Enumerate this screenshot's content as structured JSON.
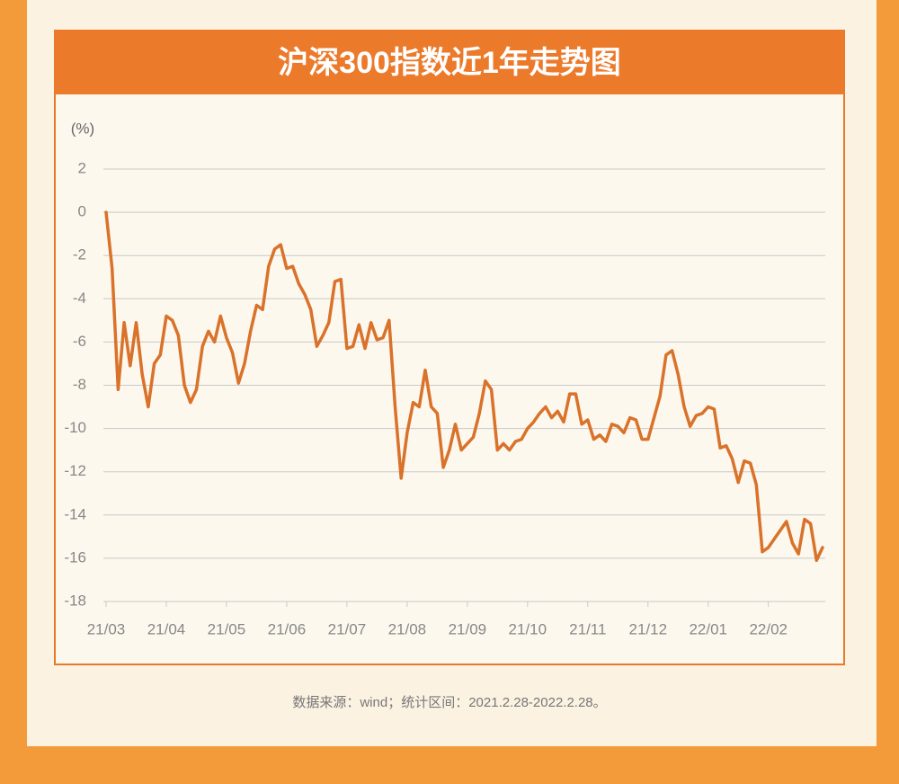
{
  "chart_data": {
    "type": "line",
    "title": "沪深300指数近1年走势图",
    "ylabel": "(%)",
    "source": "数据来源：wind；统计区间：2021.2.28-2022.2.28。",
    "color": "#d9722a",
    "grid": true,
    "ylim": [
      -18,
      2
    ],
    "yticks": [
      2,
      0,
      -2,
      -4,
      -6,
      -8,
      -10,
      -12,
      -14,
      -16,
      -18
    ],
    "categories": [
      "21/03",
      null,
      null,
      null,
      null,
      null,
      null,
      null,
      null,
      null,
      "21/04",
      null,
      null,
      null,
      null,
      null,
      null,
      null,
      null,
      null,
      "21/05",
      null,
      null,
      null,
      null,
      null,
      null,
      null,
      null,
      null,
      "21/06",
      null,
      null,
      null,
      null,
      null,
      null,
      null,
      null,
      null,
      "21/07",
      null,
      null,
      null,
      null,
      null,
      null,
      null,
      null,
      null,
      "21/08",
      null,
      null,
      null,
      null,
      null,
      null,
      null,
      null,
      null,
      "21/09",
      null,
      null,
      null,
      null,
      null,
      null,
      null,
      null,
      null,
      "21/10",
      null,
      null,
      null,
      null,
      null,
      null,
      null,
      null,
      null,
      "21/11",
      null,
      null,
      null,
      null,
      null,
      null,
      null,
      null,
      null,
      "21/12",
      null,
      null,
      null,
      null,
      null,
      null,
      null,
      null,
      null,
      "22/01",
      null,
      null,
      null,
      null,
      null,
      null,
      null,
      null,
      null,
      "22/02",
      null,
      null,
      null,
      null,
      null,
      null,
      null,
      null,
      null
    ],
    "values": [
      0,
      -2.6,
      -8.2,
      -5.1,
      -7.1,
      -5.1,
      -7.5,
      -9.0,
      -7.0,
      -6.6,
      -4.8,
      -5.0,
      -5.7,
      -8.0,
      -8.8,
      -8.2,
      -6.2,
      -5.5,
      -6.0,
      -4.8,
      -5.8,
      -6.5,
      -7.9,
      -7.0,
      -5.5,
      -4.3,
      -4.5,
      -2.5,
      -1.7,
      -1.5,
      -2.6,
      -2.5,
      -3.3,
      -3.8,
      -4.5,
      -6.2,
      -5.7,
      -5.1,
      -3.2,
      -3.1,
      -6.3,
      -6.2,
      -5.2,
      -6.3,
      -5.1,
      -5.9,
      -5.8,
      -5.0,
      -9.0,
      -12.3,
      -10.2,
      -8.8,
      -9.0,
      -7.3,
      -9.0,
      -9.3,
      -11.8,
      -11.0,
      -9.8,
      -11.0,
      -10.7,
      -10.4,
      -9.3,
      -7.8,
      -8.2,
      -11.0,
      -10.7,
      -11.0,
      -10.6,
      -10.5,
      -10.0,
      -9.7,
      -9.3,
      -9.0,
      -9.5,
      -9.2,
      -9.7,
      -8.4,
      -8.4,
      -9.8,
      -9.6,
      -10.5,
      -10.3,
      -10.6,
      -9.8,
      -9.9,
      -10.2,
      -9.5,
      -9.6,
      -10.5,
      -10.5,
      -9.5,
      -8.5,
      -6.6,
      -6.4,
      -7.5,
      -9.0,
      -9.9,
      -9.4,
      -9.3,
      -9.0,
      -9.1,
      -10.9,
      -10.8,
      -11.4,
      -12.5,
      -11.5,
      -11.6,
      -12.6,
      -15.7,
      -15.5,
      -15.1,
      -14.7,
      -14.3,
      -15.3,
      -15.8,
      -14.2,
      -14.4,
      -16.1,
      -15.5
    ]
  }
}
